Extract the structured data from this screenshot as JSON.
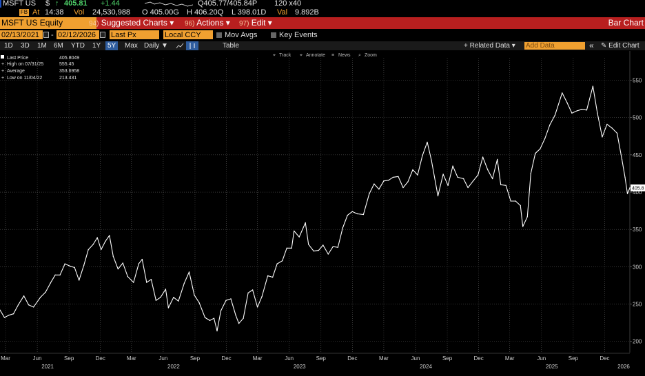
{
  "quote": {
    "ticker": "MSFT US",
    "currency": "$",
    "arrow": "↑",
    "last": "405.81",
    "change": "+1.44",
    "bidask": "Q405.77/405.84P",
    "size": "120 x40"
  },
  "trade": {
    "badge": "FB",
    "at_label": "At",
    "time": "14:38",
    "vol_label": "Vol",
    "volume": "24,530,988",
    "open": "O 405.00G",
    "high": "H 406.20Q",
    "low": "L 398.01D",
    "val_label": "Val",
    "value": "9.892B"
  },
  "cmdbar": {
    "security": "MSFT US Equity",
    "menu1_num": "94)",
    "menu1": "Suggested Charts ▾",
    "menu2_num": "96)",
    "menu2": "Actions ▾",
    "menu3_num": "97)",
    "menu3": "Edit ▾",
    "chart_type": "Bar Chart"
  },
  "fields": {
    "start_date": "02/13/2021",
    "end_date": "02/12/2026",
    "price_field": "Last Px",
    "currency": "Local CCY",
    "mov_avgs": "Mov Avgs",
    "key_events": "Key Events"
  },
  "toolbar": {
    "ranges": [
      "1D",
      "3D",
      "1M",
      "6M",
      "YTD",
      "1Y",
      "5Y",
      "Max"
    ],
    "selected_range": "5Y",
    "periodicity": "Daily ▼",
    "table": "Table",
    "related": "+ Related Data ▾",
    "add_data_placeholder": "Add Data",
    "edit_chart": "✎ Edit Chart",
    "collapse": "«"
  },
  "chart_tools": {
    "track": "Track",
    "annotate": "Annotate",
    "news": "News",
    "zoom": "Zoom"
  },
  "legend": {
    "last_price_label": "Last Price",
    "last_price": "405.8049",
    "high_label": "High on 07/31/25",
    "high": "555.45",
    "average_label": "Average",
    "average": "353.6958",
    "low_label": "Low on 11/04/22",
    "low": "213.431"
  },
  "colors": {
    "accent": "#f0a030",
    "bar": "#b81f1f",
    "series": "#ffffff",
    "positive": "#4fd46a"
  },
  "chart_data": {
    "type": "line",
    "title": "",
    "xlabel": "",
    "ylabel": "",
    "ylim": [
      185,
      580
    ],
    "xlim": [
      "2021-02-13",
      "2026-02-12"
    ],
    "y_ticks": [
      200,
      250,
      300,
      350,
      400,
      450,
      500,
      550
    ],
    "last_price_tag": "405.8",
    "grid": true,
    "legend_position": "top-left",
    "x_month_ticks": [
      {
        "label": "Mar",
        "date": "2021-03-01"
      },
      {
        "label": "Jun",
        "date": "2021-06-01"
      },
      {
        "label": "Sep",
        "date": "2021-09-01"
      },
      {
        "label": "Dec",
        "date": "2021-12-01"
      },
      {
        "label": "Mar",
        "date": "2022-03-01"
      },
      {
        "label": "Jun",
        "date": "2022-06-01"
      },
      {
        "label": "Sep",
        "date": "2022-09-01"
      },
      {
        "label": "Dec",
        "date": "2022-12-01"
      },
      {
        "label": "Mar",
        "date": "2023-03-01"
      },
      {
        "label": "Jun",
        "date": "2023-06-01"
      },
      {
        "label": "Sep",
        "date": "2023-09-01"
      },
      {
        "label": "Dec",
        "date": "2023-12-01"
      },
      {
        "label": "Mar",
        "date": "2024-03-01"
      },
      {
        "label": "Jun",
        "date": "2024-06-01"
      },
      {
        "label": "Sep",
        "date": "2024-09-01"
      },
      {
        "label": "Dec",
        "date": "2024-12-01"
      },
      {
        "label": "Mar",
        "date": "2025-03-01"
      },
      {
        "label": "Jun",
        "date": "2025-06-01"
      },
      {
        "label": "Sep",
        "date": "2025-09-01"
      },
      {
        "label": "Dec",
        "date": "2025-12-01"
      }
    ],
    "x_year_ticks": [
      {
        "label": "2021",
        "date": "2021-07-01"
      },
      {
        "label": "2022",
        "date": "2022-07-01"
      },
      {
        "label": "2023",
        "date": "2023-07-01"
      },
      {
        "label": "2024",
        "date": "2024-07-01"
      },
      {
        "label": "2025",
        "date": "2025-07-01"
      },
      {
        "label": "2026",
        "date": "2026-01-25"
      }
    ],
    "series": [
      {
        "values": [
          [
            "2021-02-13",
            242
          ],
          [
            "2021-02-26",
            232
          ],
          [
            "2021-03-10",
            235
          ],
          [
            "2021-03-24",
            237
          ],
          [
            "2021-04-07",
            249
          ],
          [
            "2021-04-23",
            261
          ],
          [
            "2021-05-07",
            249
          ],
          [
            "2021-05-21",
            246
          ],
          [
            "2021-06-10",
            259
          ],
          [
            "2021-06-25",
            266
          ],
          [
            "2021-07-09",
            278
          ],
          [
            "2021-07-23",
            289
          ],
          [
            "2021-08-06",
            289
          ],
          [
            "2021-08-20",
            304
          ],
          [
            "2021-09-03",
            301
          ],
          [
            "2021-09-17",
            299
          ],
          [
            "2021-09-30",
            282
          ],
          [
            "2021-10-14",
            302
          ],
          [
            "2021-10-27",
            323
          ],
          [
            "2021-11-10",
            330
          ],
          [
            "2021-11-22",
            339
          ],
          [
            "2021-12-03",
            323
          ],
          [
            "2021-12-15",
            334
          ],
          [
            "2021-12-27",
            342
          ],
          [
            "2022-01-07",
            314
          ],
          [
            "2022-01-21",
            297
          ],
          [
            "2022-02-04",
            305
          ],
          [
            "2022-02-18",
            287
          ],
          [
            "2022-03-07",
            279
          ],
          [
            "2022-03-22",
            304
          ],
          [
            "2022-04-01",
            310
          ],
          [
            "2022-04-14",
            279
          ],
          [
            "2022-04-27",
            283
          ],
          [
            "2022-05-11",
            255
          ],
          [
            "2022-05-24",
            259
          ],
          [
            "2022-06-08",
            270
          ],
          [
            "2022-06-16",
            245
          ],
          [
            "2022-07-01",
            259
          ],
          [
            "2022-07-15",
            254
          ],
          [
            "2022-08-01",
            278
          ],
          [
            "2022-08-15",
            293
          ],
          [
            "2022-08-30",
            262
          ],
          [
            "2022-09-13",
            252
          ],
          [
            "2022-09-30",
            232
          ],
          [
            "2022-10-14",
            228
          ],
          [
            "2022-10-26",
            231
          ],
          [
            "2022-11-04",
            214
          ],
          [
            "2022-11-15",
            241
          ],
          [
            "2022-11-30",
            255
          ],
          [
            "2022-12-14",
            257
          ],
          [
            "2022-12-28",
            235
          ],
          [
            "2023-01-06",
            224
          ],
          [
            "2023-01-19",
            231
          ],
          [
            "2023-02-02",
            265
          ],
          [
            "2023-02-15",
            269
          ],
          [
            "2023-03-01",
            246
          ],
          [
            "2023-03-14",
            260
          ],
          [
            "2023-03-31",
            288
          ],
          [
            "2023-04-14",
            286
          ],
          [
            "2023-04-27",
            304
          ],
          [
            "2023-05-12",
            308
          ],
          [
            "2023-05-25",
            325
          ],
          [
            "2023-06-08",
            325
          ],
          [
            "2023-06-15",
            348
          ],
          [
            "2023-06-30",
            340
          ],
          [
            "2023-07-18",
            359
          ],
          [
            "2023-07-27",
            330
          ],
          [
            "2023-08-11",
            321
          ],
          [
            "2023-08-25",
            322
          ],
          [
            "2023-09-07",
            329
          ],
          [
            "2023-09-22",
            317
          ],
          [
            "2023-10-06",
            327
          ],
          [
            "2023-10-20",
            326
          ],
          [
            "2023-11-03",
            352
          ],
          [
            "2023-11-17",
            369
          ],
          [
            "2023-12-01",
            374
          ],
          [
            "2023-12-15",
            371
          ],
          [
            "2024-01-02",
            370
          ],
          [
            "2024-01-19",
            398
          ],
          [
            "2024-02-02",
            411
          ],
          [
            "2024-02-16",
            404
          ],
          [
            "2024-03-01",
            415
          ],
          [
            "2024-03-15",
            416
          ],
          [
            "2024-03-28",
            420
          ],
          [
            "2024-04-12",
            421
          ],
          [
            "2024-04-26",
            406
          ],
          [
            "2024-05-10",
            414
          ],
          [
            "2024-05-24",
            430
          ],
          [
            "2024-06-07",
            423
          ],
          [
            "2024-06-21",
            449
          ],
          [
            "2024-07-05",
            467
          ],
          [
            "2024-07-17",
            443
          ],
          [
            "2024-08-05",
            395
          ],
          [
            "2024-08-20",
            424
          ],
          [
            "2024-09-03",
            409
          ],
          [
            "2024-09-17",
            435
          ],
          [
            "2024-10-01",
            420
          ],
          [
            "2024-10-18",
            418
          ],
          [
            "2024-10-31",
            406
          ],
          [
            "2024-11-15",
            415
          ],
          [
            "2024-11-29",
            423
          ],
          [
            "2024-12-13",
            447
          ],
          [
            "2024-12-27",
            430
          ],
          [
            "2025-01-10",
            418
          ],
          [
            "2025-01-24",
            444
          ],
          [
            "2025-02-03",
            410
          ],
          [
            "2025-02-18",
            409
          ],
          [
            "2025-03-04",
            388
          ],
          [
            "2025-03-18",
            388
          ],
          [
            "2025-04-01",
            382
          ],
          [
            "2025-04-08",
            354
          ],
          [
            "2025-04-21",
            367
          ],
          [
            "2025-05-01",
            425
          ],
          [
            "2025-05-14",
            452
          ],
          [
            "2025-05-28",
            458
          ],
          [
            "2025-06-11",
            472
          ],
          [
            "2025-06-25",
            490
          ],
          [
            "2025-07-10",
            503
          ],
          [
            "2025-07-31",
            533
          ],
          [
            "2025-08-14",
            520
          ],
          [
            "2025-08-28",
            506
          ],
          [
            "2025-09-12",
            509
          ],
          [
            "2025-09-26",
            511
          ],
          [
            "2025-10-10",
            510
          ],
          [
            "2025-10-28",
            542
          ],
          [
            "2025-11-10",
            506
          ],
          [
            "2025-11-24",
            474
          ],
          [
            "2025-12-08",
            491
          ],
          [
            "2025-12-22",
            486
          ],
          [
            "2026-01-06",
            479
          ],
          [
            "2026-01-20",
            444
          ],
          [
            "2026-01-29",
            420
          ],
          [
            "2026-02-05",
            398
          ],
          [
            "2026-02-12",
            405.8
          ]
        ]
      }
    ]
  }
}
